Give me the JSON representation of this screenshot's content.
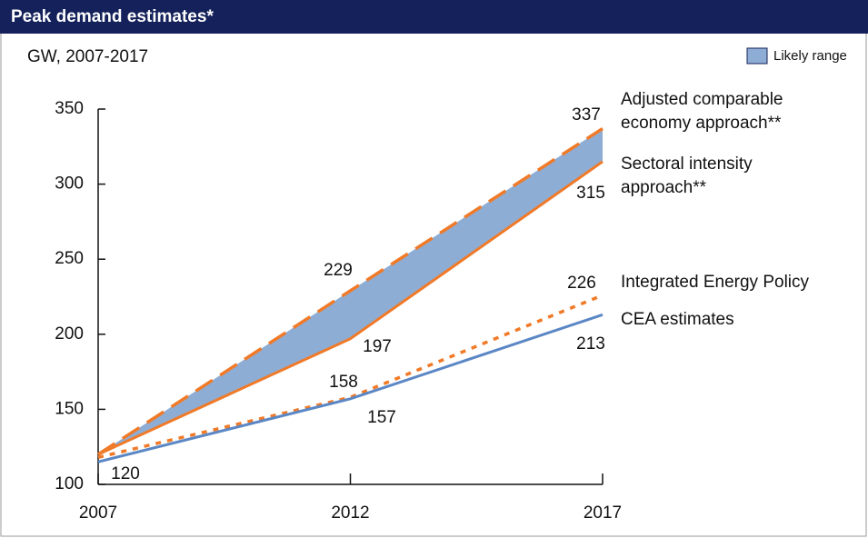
{
  "chart_data": {
    "type": "line",
    "title": "Peak demand estimates*",
    "subtitle": "GW, 2007-2017",
    "x": [
      2007,
      2012,
      2017
    ],
    "xlim": [
      2007,
      2017
    ],
    "xticks": [
      2007,
      2012,
      2017
    ],
    "ylim": [
      100,
      350
    ],
    "yticks": [
      100,
      150,
      200,
      250,
      300,
      350
    ],
    "area": {
      "name": "Likely range",
      "color": "#8eadd4"
    },
    "series": [
      {
        "name": "Adjusted comparable\neconomy approach**",
        "color": "#f07a28",
        "style": "dashed",
        "values": [
          120,
          229,
          337
        ]
      },
      {
        "name": "Sectoral intensity\napproach**",
        "color": "#f07a28",
        "style": "solid",
        "values": [
          120,
          197,
          315
        ]
      },
      {
        "name": "Integrated Energy Policy",
        "color": "#f07a28",
        "style": "dotted",
        "values": [
          118,
          158,
          226
        ]
      },
      {
        "name": "CEA estimates",
        "color": "#5b87c5",
        "style": "solid",
        "values": [
          115,
          157,
          213
        ]
      }
    ]
  }
}
